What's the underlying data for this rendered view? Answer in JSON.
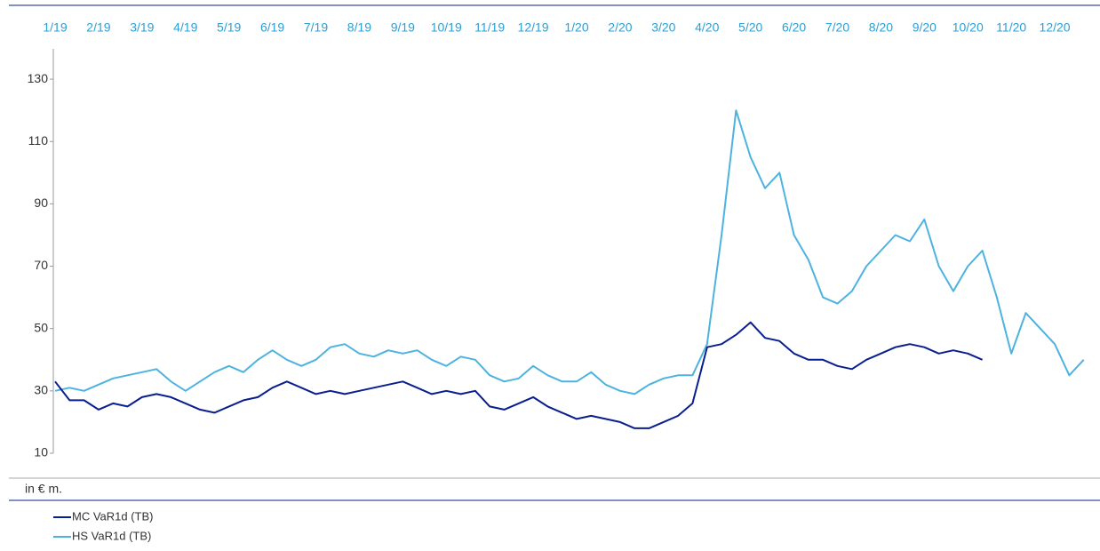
{
  "chart_data": {
    "type": "line",
    "categories": [
      "1/19",
      null,
      null,
      "2/19",
      null,
      null,
      "3/19",
      null,
      null,
      "4/19",
      null,
      null,
      "5/19",
      null,
      null,
      "6/19",
      null,
      null,
      "7/19",
      null,
      null,
      "8/19",
      null,
      null,
      "9/19",
      null,
      null,
      "10/19",
      null,
      null,
      "11/19",
      null,
      null,
      "12/19",
      null,
      null,
      "1/20",
      null,
      null,
      "2/20",
      null,
      null,
      "3/20",
      null,
      null,
      "4/20",
      null,
      null,
      "5/20",
      null,
      null,
      "6/20",
      null,
      null,
      "7/20",
      null,
      null,
      "8/20",
      null,
      null,
      "9/20",
      null,
      null,
      "10/20",
      null,
      null,
      "11/20",
      null,
      null,
      "12/20",
      null,
      null
    ],
    "series": [
      {
        "name": "MC VaR1d (TB)",
        "color": "#0a1f8f",
        "values": [
          33,
          27,
          27,
          24,
          26,
          25,
          28,
          29,
          28,
          26,
          24,
          23,
          25,
          27,
          28,
          31,
          33,
          31,
          29,
          30,
          29,
          30,
          31,
          32,
          33,
          31,
          29,
          30,
          29,
          30,
          25,
          24,
          26,
          28,
          25,
          23,
          21,
          22,
          21,
          20,
          18,
          18,
          20,
          22,
          26,
          44,
          45,
          48,
          52,
          47,
          46,
          42,
          40,
          40,
          38,
          37,
          40,
          42,
          44,
          45,
          44,
          42,
          43,
          42,
          40,
          null,
          null,
          null,
          null,
          null,
          null,
          null
        ]
      },
      {
        "name": "HS VaR1d (TB)",
        "color": "#4cb3e0",
        "values": [
          30,
          31,
          30,
          32,
          34,
          35,
          36,
          37,
          33,
          30,
          33,
          36,
          38,
          36,
          40,
          43,
          40,
          38,
          40,
          44,
          45,
          42,
          41,
          43,
          42,
          43,
          40,
          38,
          41,
          40,
          35,
          33,
          34,
          38,
          35,
          33,
          33,
          36,
          32,
          30,
          29,
          32,
          34,
          35,
          35,
          45,
          80,
          120,
          105,
          95,
          100,
          80,
          72,
          60,
          58,
          62,
          70,
          75,
          80,
          78,
          85,
          70,
          62,
          70,
          75,
          60,
          42,
          55,
          50,
          45,
          35,
          40
        ]
      }
    ],
    "ylim": [
      10,
      140
    ],
    "yticks": [
      10,
      30,
      50,
      70,
      90,
      110,
      130
    ],
    "note": "in € m."
  }
}
